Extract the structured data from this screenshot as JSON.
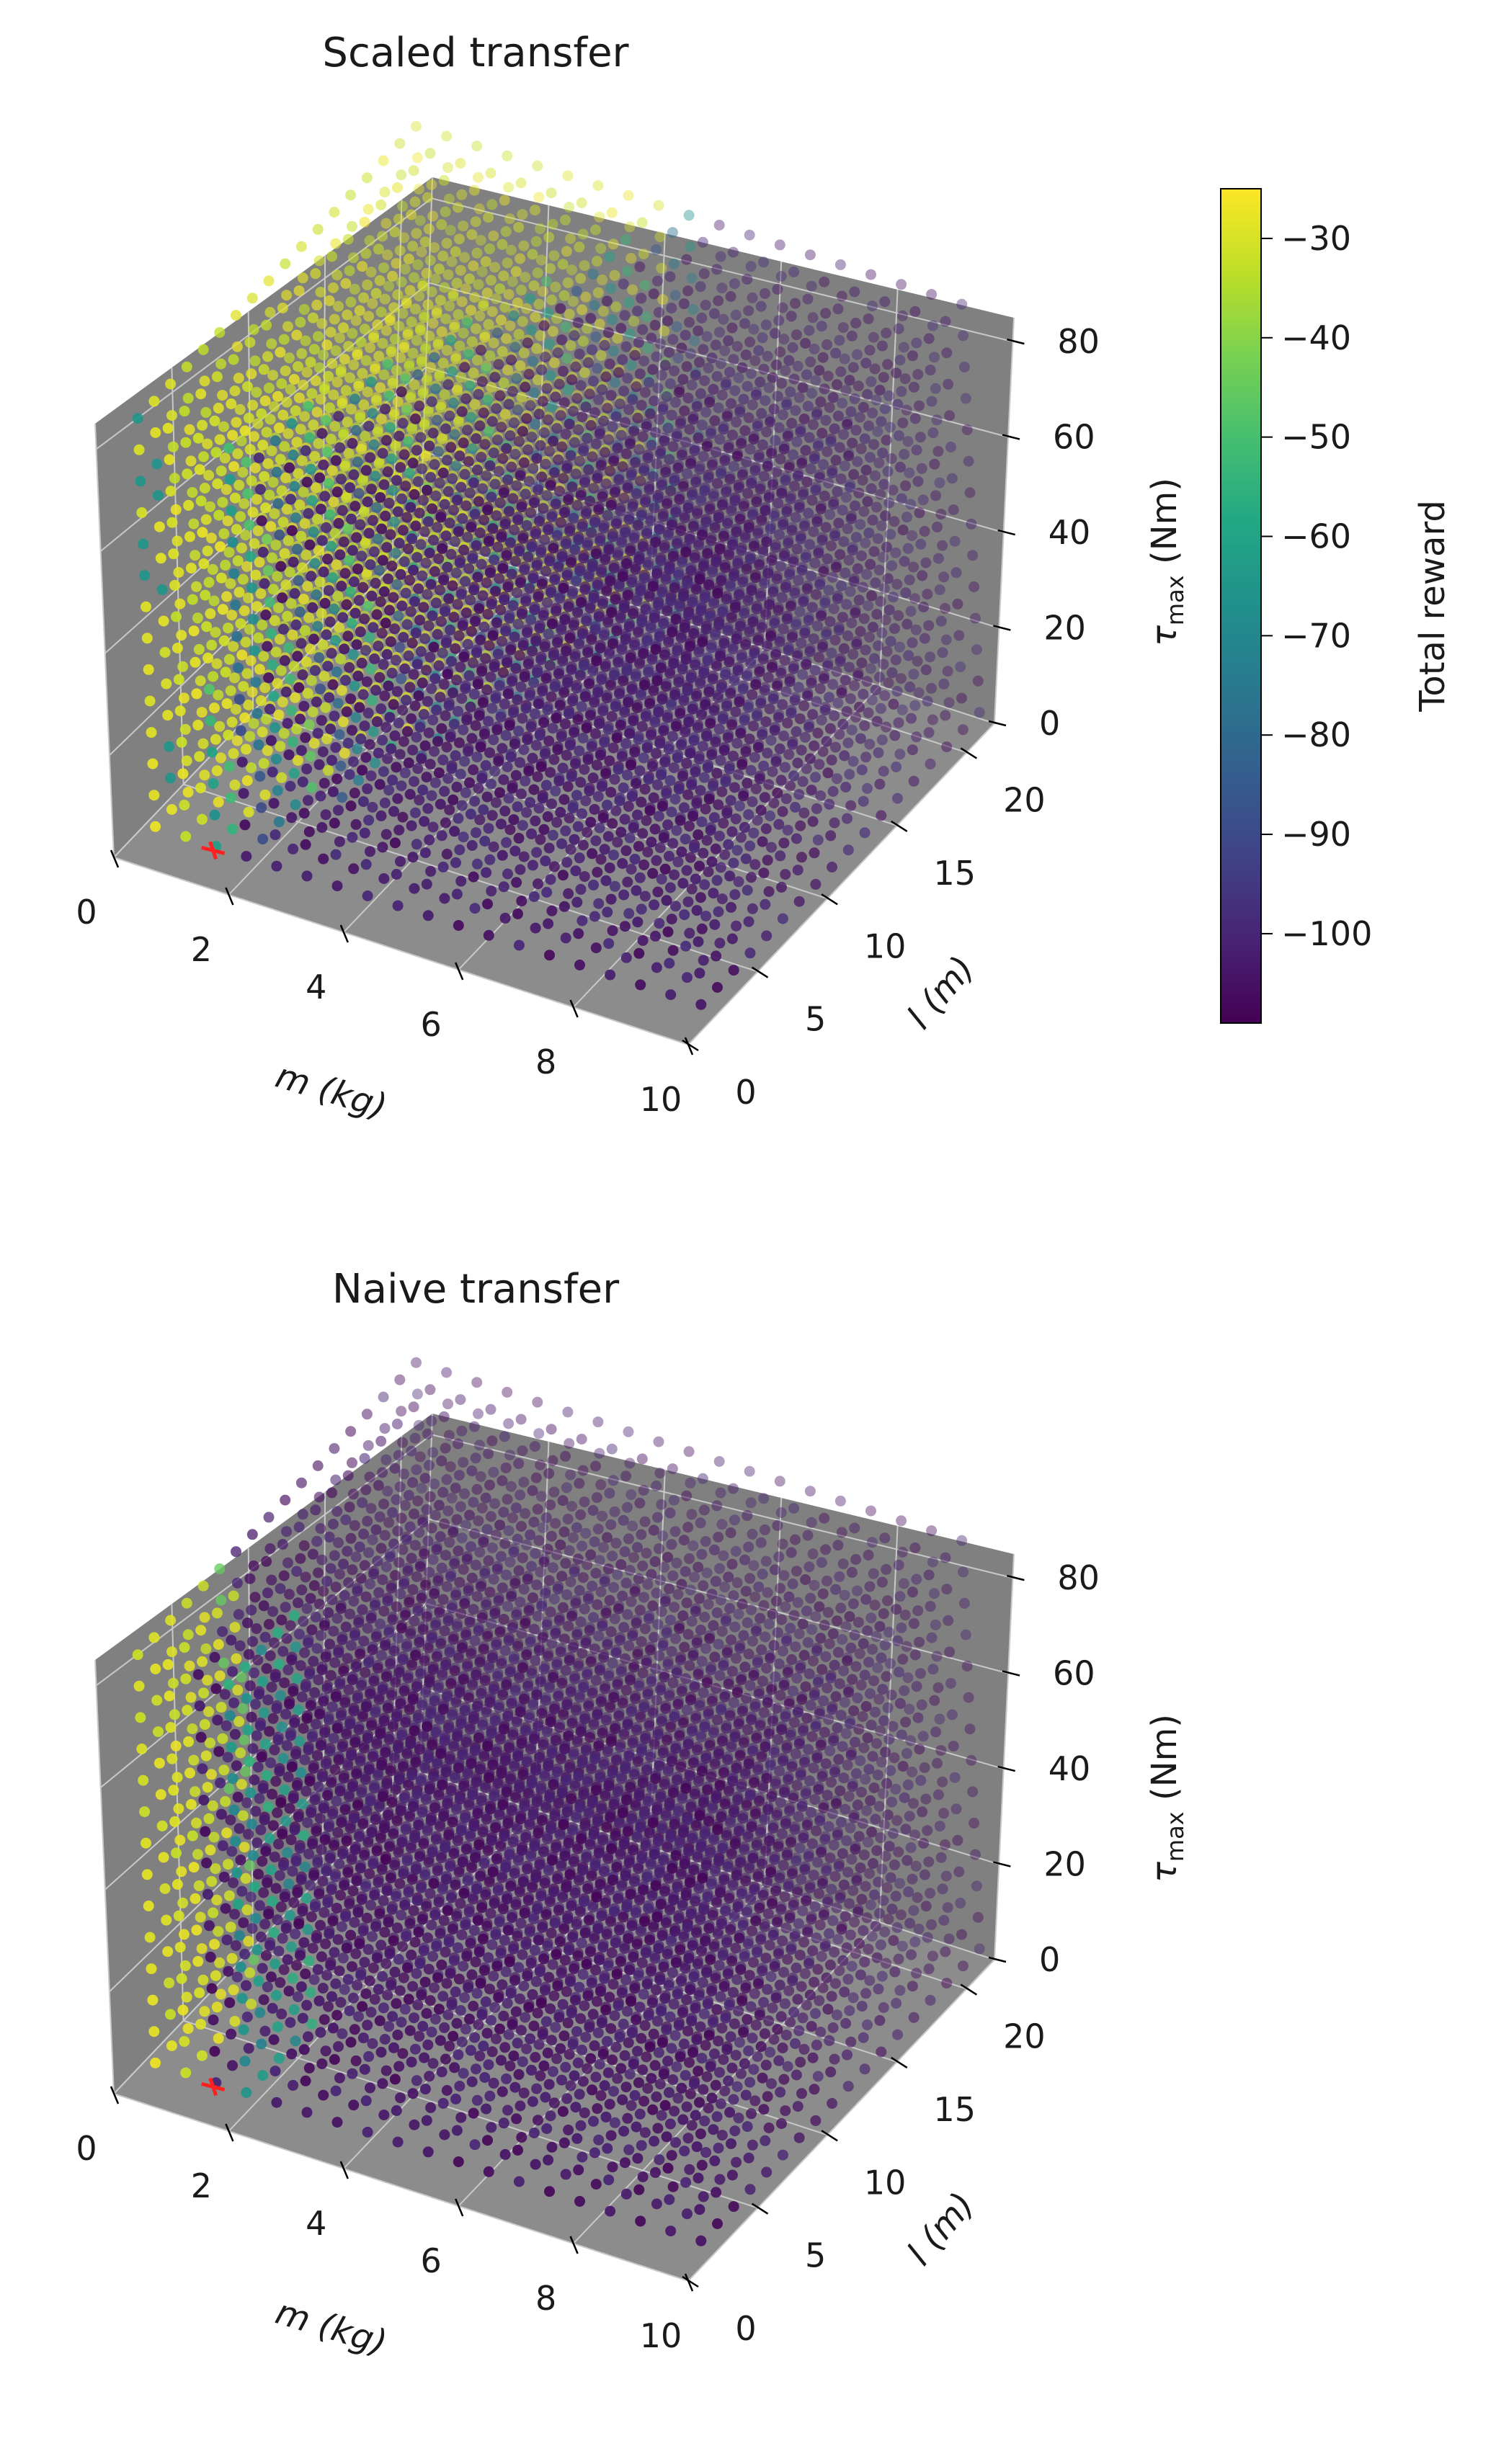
{
  "colors": {
    "pane_face": "#808080",
    "pane_face_top": "#8c8c8c",
    "grid": "#c8c8c8",
    "marker": "#ff2020",
    "colormap": "viridis"
  },
  "chart_data": [
    {
      "type": "scatter3d",
      "title": "Scaled transfer",
      "xlabel": "m (kg)",
      "ylabel": "l (m)",
      "zlabel_main": "τ",
      "zlabel_sub": "max",
      "zlabel_unit": " (Nm)",
      "xlim": [
        0,
        10
      ],
      "ylim": [
        0,
        22
      ],
      "zlim": [
        0,
        85
      ],
      "xticks": [
        "0",
        "2",
        "4",
        "6",
        "8",
        "10"
      ],
      "yticks": [
        "0",
        "5",
        "10",
        "15",
        "20"
      ],
      "zticks": [
        "0",
        "20",
        "40",
        "60",
        "80"
      ],
      "grid": true,
      "highlight_point": {
        "m": 1.5,
        "l": 1.0,
        "tau": 4.0
      },
      "pattern": "scaled"
    },
    {
      "type": "scatter3d",
      "title": "Naive transfer",
      "xlabel": "m (kg)",
      "ylabel": "l (m)",
      "zlabel_main": "τ",
      "zlabel_sub": "max",
      "zlabel_unit": " (Nm)",
      "xlim": [
        0,
        10
      ],
      "ylim": [
        0,
        22
      ],
      "zlim": [
        0,
        85
      ],
      "xticks": [
        "0",
        "2",
        "4",
        "6",
        "8",
        "10"
      ],
      "yticks": [
        "0",
        "5",
        "10",
        "15",
        "20"
      ],
      "zticks": [
        "0",
        "20",
        "40",
        "60",
        "80"
      ],
      "grid": true,
      "highlight_point": {
        "m": 1.5,
        "l": 1.0,
        "tau": 4.0
      },
      "pattern": "naive"
    }
  ],
  "colorbar": {
    "label": "Total reward",
    "min": -109,
    "max": -25,
    "ticks": [
      "−30",
      "−40",
      "−50",
      "−60",
      "−70",
      "−80",
      "−90",
      "−100"
    ],
    "tick_values": [
      -30,
      -40,
      -50,
      -60,
      -70,
      -80,
      -90,
      -100
    ]
  }
}
